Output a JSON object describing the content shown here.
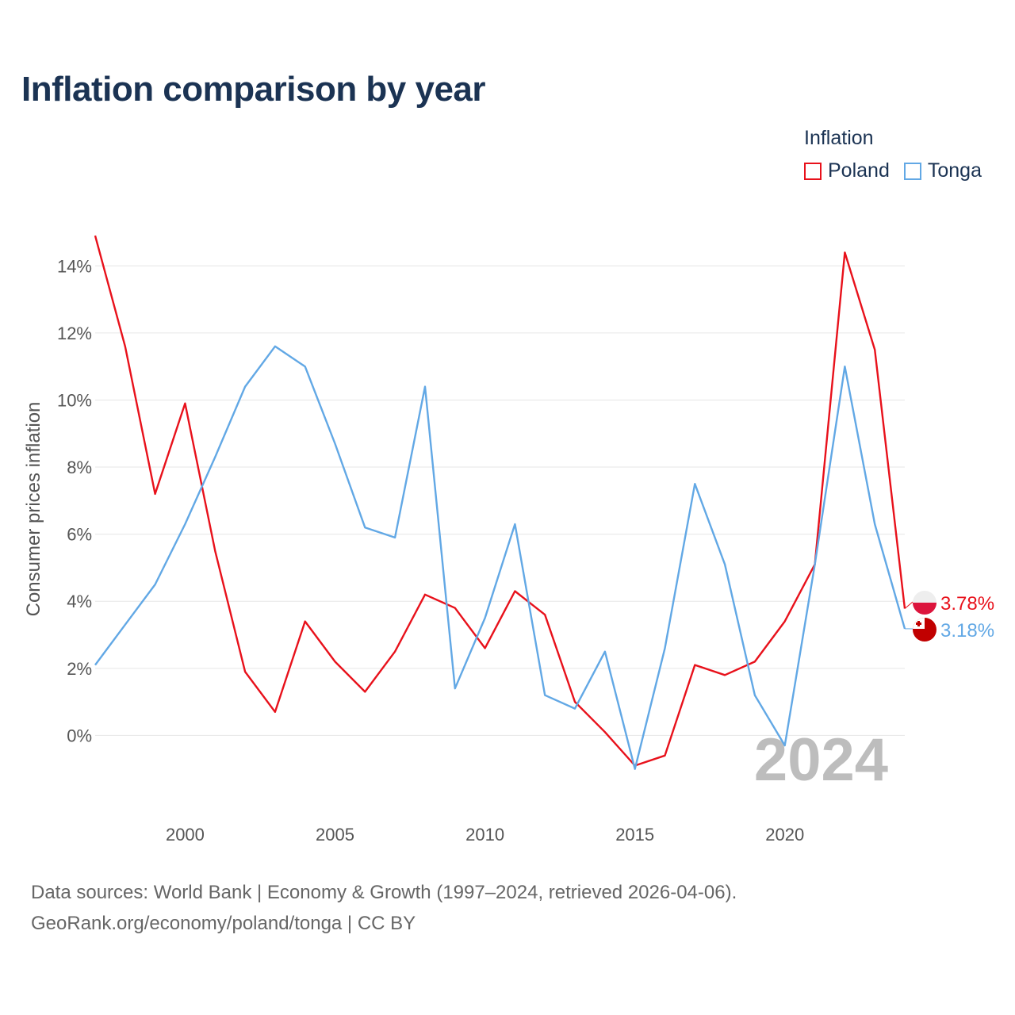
{
  "chart_data": {
    "type": "line",
    "title": "Inflation comparison by year",
    "legend_title": "Inflation",
    "ylabel": "Consumer prices inflation",
    "xlabel": "",
    "x": [
      1997,
      1998,
      1999,
      2000,
      2001,
      2002,
      2003,
      2004,
      2005,
      2006,
      2007,
      2008,
      2009,
      2010,
      2011,
      2012,
      2013,
      2014,
      2015,
      2016,
      2017,
      2018,
      2019,
      2020,
      2021,
      2022,
      2023,
      2024
    ],
    "xlim": [
      1997,
      2024
    ],
    "ylim": [
      -2.0,
      15.0
    ],
    "x_ticks": [
      2000,
      2005,
      2010,
      2015,
      2020
    ],
    "y_ticks": [
      0,
      2,
      4,
      6,
      8,
      10,
      12,
      14
    ],
    "y_tick_labels": [
      "0%",
      "2%",
      "4%",
      "6%",
      "8%",
      "10%",
      "12%",
      "14%"
    ],
    "x_tick_labels": [
      "2000",
      "2005",
      "2010",
      "2015",
      "2020"
    ],
    "current_year_label": "2024",
    "series": [
      {
        "name": "Poland",
        "color": "#e8111b",
        "values": [
          14.9,
          11.6,
          7.2,
          9.9,
          5.5,
          1.9,
          0.7,
          3.4,
          2.2,
          1.3,
          2.5,
          4.2,
          3.8,
          2.6,
          4.3,
          3.6,
          1.0,
          0.1,
          -0.9,
          -0.6,
          2.1,
          1.8,
          2.2,
          3.4,
          5.1,
          14.4,
          11.5,
          3.78
        ],
        "end_label": "3.78%",
        "flag": "poland-flag-icon"
      },
      {
        "name": "Tonga",
        "color": "#62a8e5",
        "values": [
          2.1,
          3.3,
          4.5,
          6.3,
          8.3,
          10.4,
          11.6,
          11.0,
          8.7,
          6.2,
          5.9,
          10.4,
          1.4,
          3.5,
          6.3,
          1.2,
          0.8,
          2.5,
          -1.0,
          2.6,
          7.5,
          5.1,
          1.2,
          -0.3,
          5.1,
          11.0,
          6.3,
          3.18
        ],
        "end_label": "3.18%",
        "flag": "tonga-flag-icon"
      }
    ]
  },
  "source": {
    "line1": "Data sources: World Bank | Economy & Growth (1997–2024, retrieved 2026-04-06).",
    "line2": "GeoRank.org/economy/poland/tonga | CC BY"
  }
}
